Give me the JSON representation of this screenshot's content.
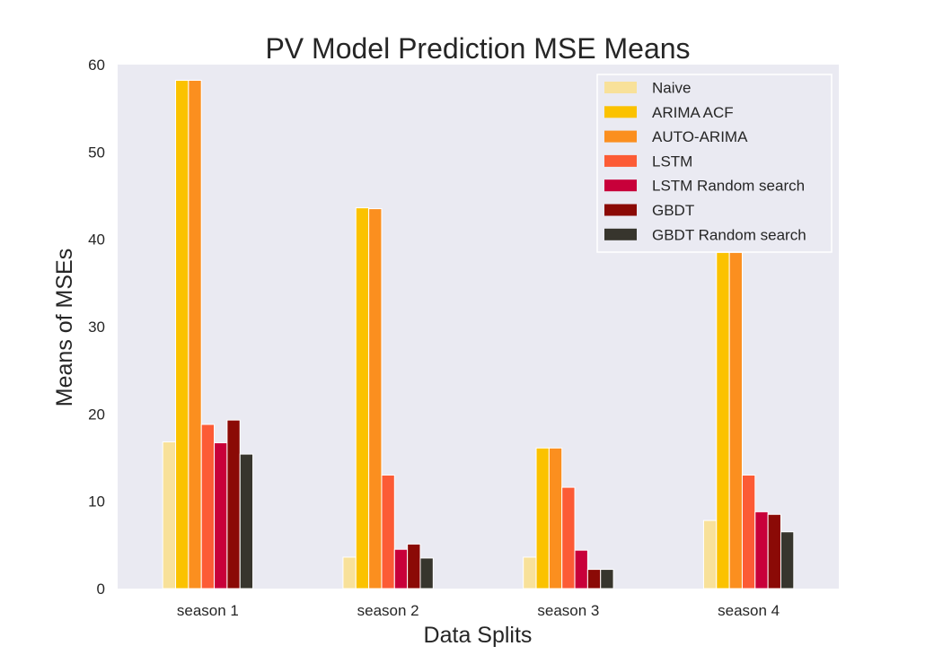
{
  "chart_data": {
    "type": "bar",
    "title": "PV Model Prediction MSE Means",
    "xlabel": "Data Splits",
    "ylabel": "Means of MSEs",
    "categories": [
      "season 1",
      "season 2",
      "season 3",
      "season 4"
    ],
    "ylim": [
      0,
      60
    ],
    "yticks": [
      0,
      10,
      20,
      30,
      40,
      50,
      60
    ],
    "grid": false,
    "legend_position": "top-right",
    "series": [
      {
        "name": "Naive",
        "color": "#f8e19a",
        "values": [
          16.8,
          3.6,
          3.6,
          7.8
        ]
      },
      {
        "name": "ARIMA ACF",
        "color": "#fbc200",
        "values": [
          58.2,
          43.6,
          16.1,
          38.5
        ]
      },
      {
        "name": "AUTO-ARIMA",
        "color": "#fb8f1f",
        "values": [
          58.2,
          43.5,
          16.1,
          38.5
        ]
      },
      {
        "name": "LSTM",
        "color": "#fc5b35",
        "values": [
          18.8,
          13.0,
          11.6,
          13.0
        ]
      },
      {
        "name": "LSTM Random search",
        "color": "#c8003a",
        "values": [
          16.7,
          4.5,
          4.4,
          8.8
        ]
      },
      {
        "name": "GBDT",
        "color": "#8b0a06",
        "values": [
          19.3,
          5.1,
          2.2,
          8.5
        ]
      },
      {
        "name": "GBDT Random search",
        "color": "#37352d",
        "values": [
          15.4,
          3.5,
          2.2,
          6.5
        ]
      }
    ]
  }
}
